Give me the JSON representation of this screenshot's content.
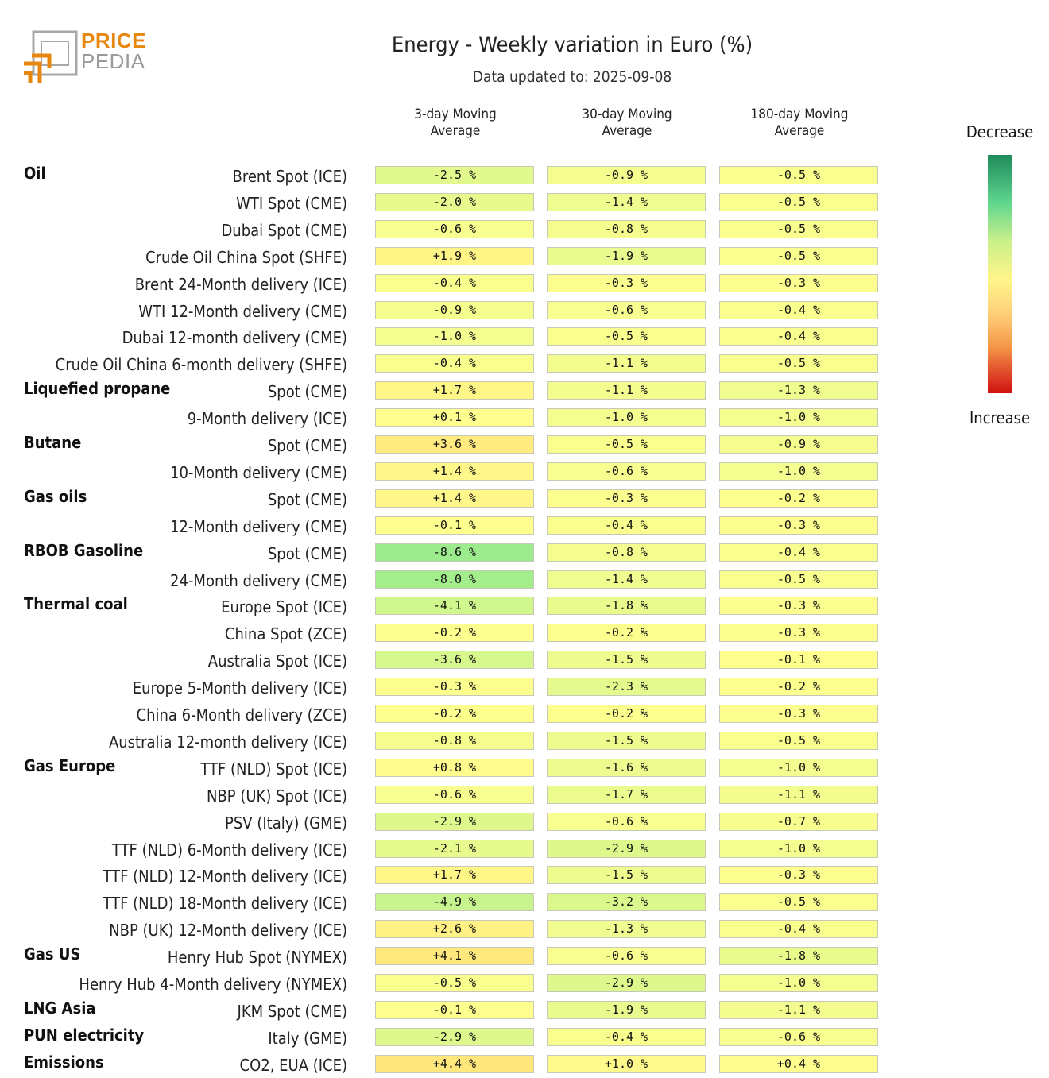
{
  "logo": {
    "line1": "PRICE",
    "line2": "PEDIA"
  },
  "colors": {
    "decrease_dark": "#1f8a5c",
    "neutral": "#fff58a",
    "increase_dark": "#d01010"
  },
  "chart_data": {
    "type": "table",
    "title": "Energy - Weekly variation in Euro (%)",
    "subtitle": "Data updated to: 2025-09-08",
    "columns": [
      "3-day Moving\nAverage",
      "30-day Moving\nAverage",
      "180-day Moving\nAverage"
    ],
    "unit": "%",
    "legend": {
      "top": "Decrease",
      "bottom": "Increase"
    },
    "rows": [
      {
        "group": "Oil",
        "label": "Brent Spot (ICE)",
        "values": [
          -2.5,
          -0.9,
          -0.5
        ]
      },
      {
        "group": "",
        "label": "WTI Spot (CME)",
        "values": [
          -2.0,
          -1.4,
          -0.5
        ]
      },
      {
        "group": "",
        "label": "Dubai Spot (CME)",
        "values": [
          -0.6,
          -0.8,
          -0.5
        ]
      },
      {
        "group": "",
        "label": "Crude Oil China Spot (SHFE)",
        "values": [
          1.9,
          -1.9,
          -0.5
        ]
      },
      {
        "group": "",
        "label": "Brent 24-Month delivery (ICE)",
        "values": [
          -0.4,
          -0.3,
          -0.3
        ]
      },
      {
        "group": "",
        "label": "WTI 12-Month delivery (CME)",
        "values": [
          -0.9,
          -0.6,
          -0.4
        ]
      },
      {
        "group": "",
        "label": "Dubai 12-month delivery (CME)",
        "values": [
          -1.0,
          -0.5,
          -0.4
        ]
      },
      {
        "group": "",
        "label": "Crude Oil China 6-month delivery (SHFE)",
        "values": [
          -0.4,
          -1.1,
          -0.5
        ]
      },
      {
        "group": "Liquefied propane",
        "label": "Spot (CME)",
        "values": [
          1.7,
          -1.1,
          -1.3
        ]
      },
      {
        "group": "",
        "label": "9-Month delivery (ICE)",
        "values": [
          0.1,
          -1.0,
          -1.0
        ]
      },
      {
        "group": "Butane",
        "label": "Spot (CME)",
        "values": [
          3.6,
          -0.5,
          -0.9
        ]
      },
      {
        "group": "",
        "label": "10-Month delivery (CME)",
        "values": [
          1.4,
          -0.6,
          -1.0
        ]
      },
      {
        "group": "Gas oils",
        "label": "Spot (CME)",
        "values": [
          1.4,
          -0.3,
          -0.2
        ]
      },
      {
        "group": "",
        "label": "12-Month delivery (CME)",
        "values": [
          -0.1,
          -0.4,
          -0.3
        ]
      },
      {
        "group": "RBOB Gasoline",
        "label": "Spot (CME)",
        "values": [
          -8.6,
          -0.8,
          -0.4
        ]
      },
      {
        "group": "",
        "label": "24-Month delivery (CME)",
        "values": [
          -8.0,
          -1.4,
          -0.5
        ]
      },
      {
        "group": "Thermal coal",
        "label": "Europe Spot (ICE)",
        "values": [
          -4.1,
          -1.8,
          -0.3
        ]
      },
      {
        "group": "",
        "label": "China Spot (ZCE)",
        "values": [
          -0.2,
          -0.2,
          -0.3
        ]
      },
      {
        "group": "",
        "label": "Australia Spot (ICE)",
        "values": [
          -3.6,
          -1.5,
          -0.1
        ]
      },
      {
        "group": "",
        "label": "Europe 5-Month delivery (ICE)",
        "values": [
          -0.3,
          -2.3,
          -0.2
        ]
      },
      {
        "group": "",
        "label": "China 6-Month delivery (ZCE)",
        "values": [
          -0.2,
          -0.2,
          -0.3
        ]
      },
      {
        "group": "",
        "label": "Australia 12-month delivery (ICE)",
        "values": [
          -0.8,
          -1.5,
          -0.5
        ]
      },
      {
        "group": "Gas Europe",
        "label": "TTF (NLD) Spot (ICE)",
        "values": [
          0.8,
          -1.6,
          -1.0
        ]
      },
      {
        "group": "",
        "label": "NBP (UK) Spot (ICE)",
        "values": [
          -0.6,
          -1.7,
          -1.1
        ]
      },
      {
        "group": "",
        "label": "PSV (Italy) (GME)",
        "values": [
          -2.9,
          -0.6,
          -0.7
        ]
      },
      {
        "group": "",
        "label": "TTF (NLD) 6-Month delivery (ICE)",
        "values": [
          -2.1,
          -2.9,
          -1.0
        ]
      },
      {
        "group": "",
        "label": "TTF (NLD) 12-Month delivery (ICE)",
        "values": [
          1.7,
          -1.5,
          -0.3
        ]
      },
      {
        "group": "",
        "label": "TTF (NLD) 18-Month delivery (ICE)",
        "values": [
          -4.9,
          -3.2,
          -0.5
        ]
      },
      {
        "group": "",
        "label": "NBP (UK) 12-Month delivery (ICE)",
        "values": [
          2.6,
          -1.3,
          -0.4
        ]
      },
      {
        "group": "Gas US",
        "label": "Henry Hub Spot (NYMEX)",
        "values": [
          4.1,
          -0.6,
          -1.8
        ]
      },
      {
        "group": "",
        "label": "Henry Hub 4-Month delivery (NYMEX)",
        "values": [
          -0.5,
          -2.9,
          -1.0
        ]
      },
      {
        "group": "LNG Asia",
        "label": "JKM Spot (CME)",
        "values": [
          -0.1,
          -1.9,
          -1.1
        ]
      },
      {
        "group": "PUN electricity",
        "label": "Italy (GME)",
        "values": [
          -2.9,
          -0.4,
          -0.6
        ]
      },
      {
        "group": "Emissions",
        "label": "CO2, EUA (ICE)",
        "values": [
          4.4,
          1.0,
          0.4
        ]
      }
    ]
  }
}
